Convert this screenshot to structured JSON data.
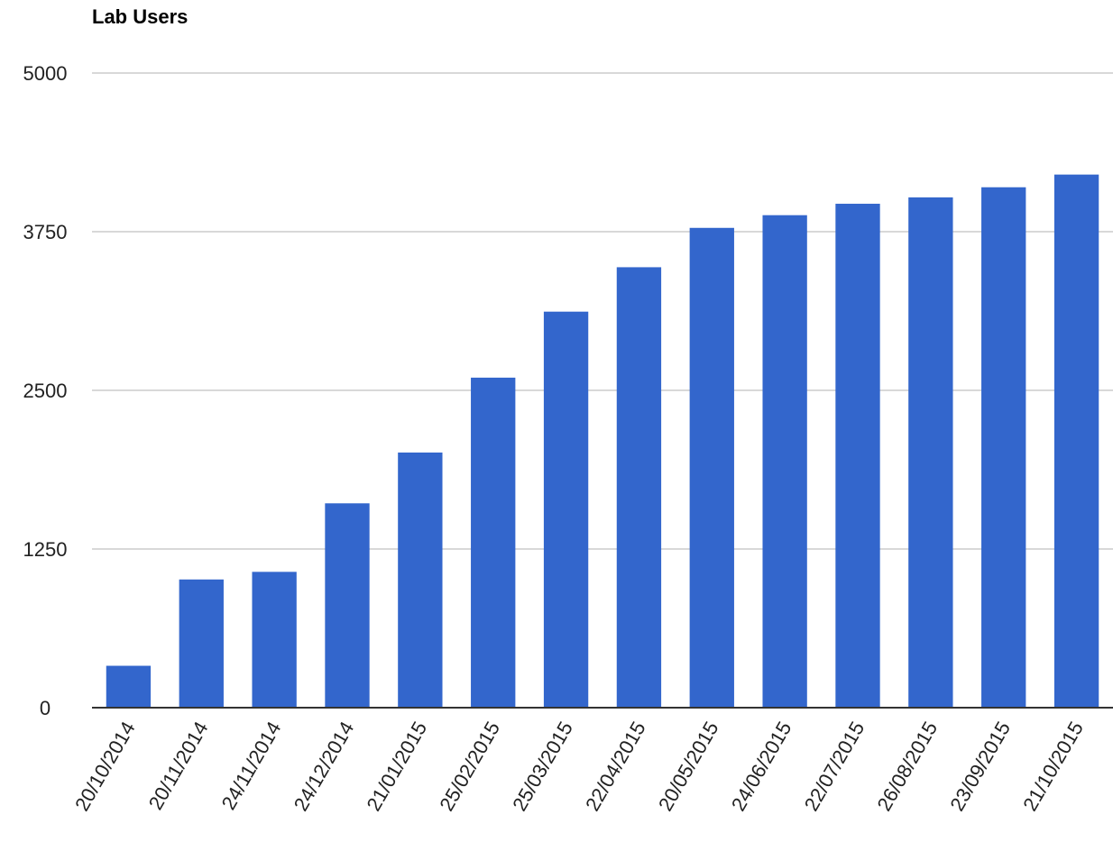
{
  "chart_data": {
    "type": "bar",
    "title": "Lab Users",
    "xlabel": "",
    "ylabel": "",
    "categories": [
      "20/10/2014",
      "20/11/2014",
      "24/11/2014",
      "24/12/2014",
      "21/01/2015",
      "25/02/2015",
      "25/03/2015",
      "22/04/2015",
      "20/05/2015",
      "24/06/2015",
      "22/07/2015",
      "26/08/2015",
      "23/09/2015",
      "21/10/2015"
    ],
    "values": [
      330,
      1010,
      1070,
      1610,
      2010,
      2600,
      3120,
      3470,
      3780,
      3880,
      3970,
      4020,
      4100,
      4200
    ],
    "ylim": [
      0,
      5000
    ],
    "yticks": [
      0,
      1250,
      2500,
      3750,
      5000
    ],
    "grid": true,
    "legend": "none",
    "bar_color": "#3366cc",
    "gridline_color": "#cccccc",
    "baseline_color": "#333333"
  }
}
